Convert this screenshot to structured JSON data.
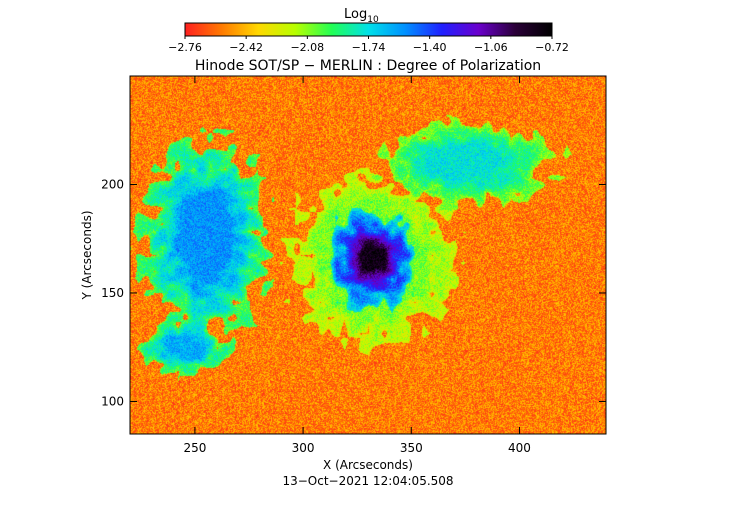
{
  "colorbar": {
    "label_main": "Log",
    "label_sub": "10",
    "ticks": [
      "−2.76",
      "−2.42",
      "−2.08",
      "−1.74",
      "−1.40",
      "−1.06",
      "−0.72"
    ],
    "colors": [
      "#ff2020",
      "#ff7a00",
      "#ffd800",
      "#b8ff00",
      "#22ff55",
      "#00e0e8",
      "#0090ff",
      "#2020ff",
      "#6a00cc",
      "#2a0038",
      "#000000"
    ]
  },
  "chart_data": {
    "type": "heatmap",
    "title": "Hinode SOT/SP − MERLIN : Degree of Polarization",
    "xlabel": "X (Arcseconds)",
    "ylabel": "Y (Arcseconds)",
    "xlim": [
      220,
      440
    ],
    "ylim": [
      85,
      250
    ],
    "xticks": [
      250,
      300,
      350,
      400
    ],
    "yticks": [
      100,
      150,
      200
    ],
    "colorbar_range": [
      -2.76,
      -0.72
    ],
    "background_level": -2.55,
    "features": [
      {
        "name": "sunspot umbra",
        "center": [
          332,
          166
        ],
        "radius_x": 12,
        "radius_y": 14,
        "value": -0.8
      },
      {
        "name": "sunspot penumbra",
        "center": [
          332,
          166
        ],
        "radius_x": 20,
        "radius_y": 22,
        "value": -1.15
      },
      {
        "name": "penumbral halo",
        "center": [
          332,
          166
        ],
        "radius_x": 36,
        "radius_y": 38,
        "value": -1.95
      },
      {
        "name": "plage region west",
        "center": [
          255,
          175
        ],
        "radius_x": 28,
        "radius_y": 45,
        "value": -1.55
      },
      {
        "name": "plage region north-east",
        "center": [
          375,
          210
        ],
        "radius_x": 40,
        "radius_y": 18,
        "value": -1.75
      },
      {
        "name": "network patch south-west",
        "center": [
          245,
          125
        ],
        "radius_x": 20,
        "radius_y": 12,
        "value": -1.6
      }
    ]
  },
  "date_label": "13−Oct−2021 12:04:05.508"
}
